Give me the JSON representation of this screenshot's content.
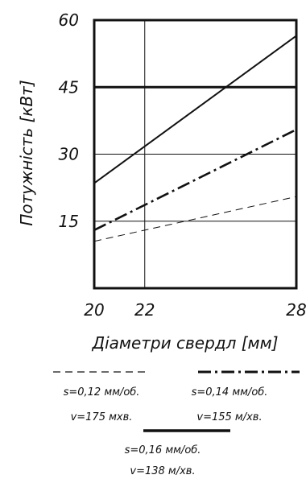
{
  "chart_data": {
    "type": "line",
    "xlabel": "Діаметри свердл [мм]",
    "ylabel": "Потужність [кВт]",
    "xlim": [
      20,
      28
    ],
    "ylim": [
      0,
      60
    ],
    "xticks": [
      "20",
      "22",
      "28"
    ],
    "yticks": [
      "60",
      "45",
      "30",
      "15"
    ],
    "grid": true,
    "series": [
      {
        "style": "solid",
        "x": [
          20,
          28
        ],
        "y": [
          23.5,
          56.5
        ],
        "legend": [
          "s=0,16 мм/об.",
          "v=138 м/хв."
        ]
      },
      {
        "style": "dashdot",
        "x": [
          20,
          28
        ],
        "y": [
          13,
          35.5
        ],
        "legend": [
          "s=0,14 мм/об.",
          "v=155 м/хв."
        ]
      },
      {
        "style": "dashed",
        "x": [
          20,
          28
        ],
        "y": [
          10.5,
          20.5
        ],
        "legend": [
          "s=0,12 мм/об.",
          "v=175 мхв."
        ]
      }
    ],
    "reference_lines": [
      {
        "axis": "y",
        "value": 45,
        "style": "thick"
      }
    ]
  },
  "colors": {
    "ink": "#111111",
    "background": "#ffffff"
  }
}
